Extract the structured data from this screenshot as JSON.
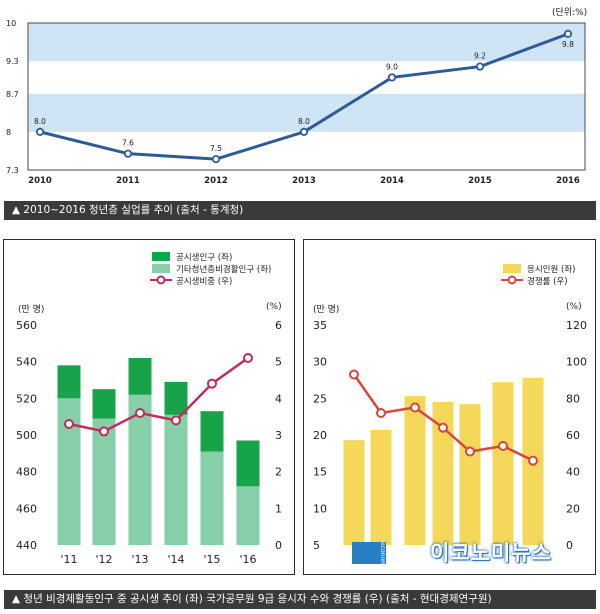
{
  "top": {
    "unit_label": "(단위:%)",
    "caption": "▲ 2010~2016 청년층 실업률 추이 (출처 - 통계청)",
    "colors": {
      "line": "#2e5b94",
      "band": "#cfe4f5",
      "point_fill": "#ffffff"
    }
  },
  "bottom": {
    "caption": "▲ 청년 비경제활동인구 중 공시생 추이 (좌) 국가공무원 9급 응시자 수와 경쟁률 (우) (출처 - 현대경제연구원)",
    "watermark": "이코노미뉴스",
    "logo_text": "economy",
    "left_panel": {
      "left_unit": "(만 명)",
      "right_unit": "(%)",
      "legend": [
        "공시생인구 (좌)",
        "기타청년층비경활인구 (좌)",
        "공시생비중 (우)"
      ],
      "colors": {
        "gongsi": "#16a34a",
        "other": "#86cfa9",
        "line": "#c02c5b"
      }
    },
    "right_panel": {
      "left_unit": "(만 명)",
      "right_unit": "(%)",
      "legend": [
        "응시인원 (좌)",
        "경쟁률 (우)"
      ],
      "colors": {
        "bar": "#f5d75a",
        "line": "#d9463b"
      }
    }
  },
  "chart_data": [
    {
      "type": "line",
      "title": "",
      "x": [
        "2010",
        "2011",
        "2012",
        "2013",
        "2014",
        "2015",
        "2016"
      ],
      "series": [
        {
          "values": [
            8.0,
            7.6,
            7.5,
            8.0,
            9.0,
            9.2,
            9.8
          ]
        }
      ],
      "data_labels": [
        "8.0",
        "7.6",
        "7.5",
        "8.0",
        "9.0",
        "9.2",
        "9.8"
      ],
      "yticks": [
        "7.3",
        "8",
        "8.7",
        "9.3",
        "10"
      ],
      "ylim": [
        7.3,
        10
      ],
      "grid": "bands"
    },
    {
      "type": "bar",
      "stacked": true,
      "categories": [
        "'11",
        "'12",
        "'13",
        "'14",
        "'15",
        "'16"
      ],
      "series": [
        {
          "name": "기타청년층비경활인구 (좌)",
          "values": [
            520,
            509,
            522,
            511,
            491,
            472
          ]
        },
        {
          "name": "공시생인구 (좌)",
          "values": [
            18,
            16,
            20,
            18,
            22,
            25
          ]
        }
      ],
      "line_series": {
        "name": "공시생비중 (우)",
        "values": [
          3.3,
          3.1,
          3.6,
          3.4,
          4.4,
          5.1
        ]
      },
      "yticks_left": [
        "440",
        "460",
        "480",
        "500",
        "520",
        "540",
        "560"
      ],
      "yticks_right": [
        "0",
        "1",
        "2",
        "3",
        "4",
        "5",
        "6"
      ],
      "ylim_left": [
        440,
        560
      ],
      "ylim_right": [
        0,
        6
      ]
    },
    {
      "type": "bar",
      "categories": [
        "",
        "",
        "",
        "",
        "",
        "",
        ""
      ],
      "series": [
        {
          "name": "응시인원 (좌)",
          "values": [
            19.3,
            20.7,
            25.3,
            24.5,
            24.2,
            27.2,
            27.8
          ]
        }
      ],
      "line_series": {
        "name": "경쟁률 (우)",
        "values": [
          93,
          72,
          75,
          64,
          51,
          54,
          46
        ]
      },
      "yticks_left": [
        "5",
        "10",
        "15",
        "20",
        "25",
        "30",
        "35"
      ],
      "yticks_right": [
        "0",
        "20",
        "40",
        "60",
        "80",
        "100",
        "120"
      ],
      "ylim_left": [
        5,
        35
      ],
      "ylim_right": [
        0,
        120
      ]
    }
  ]
}
